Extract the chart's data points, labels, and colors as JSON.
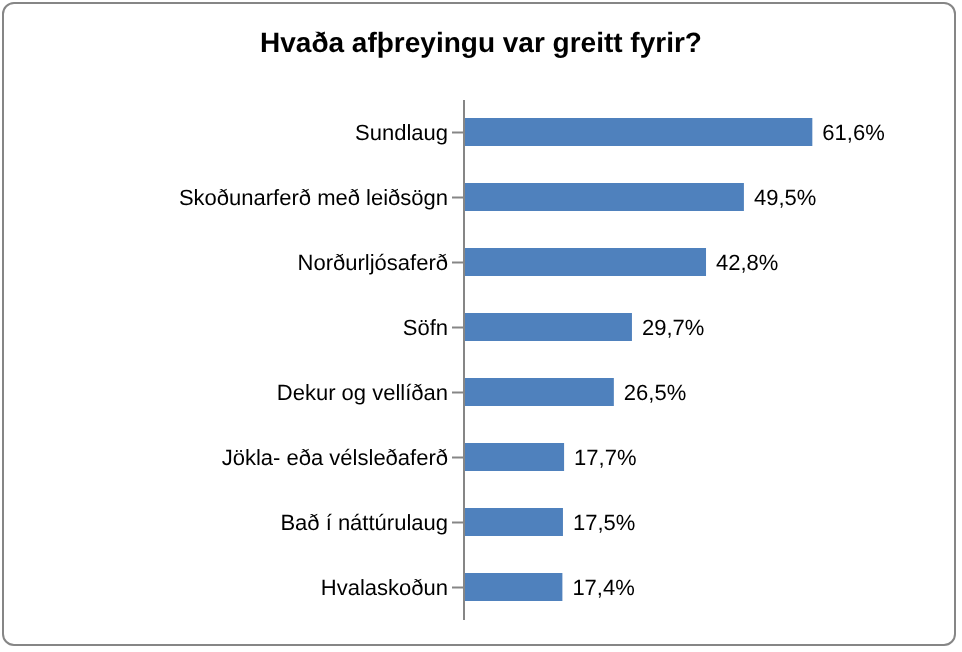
{
  "chart_data": {
    "type": "bar",
    "orientation": "horizontal",
    "title": "Hvaða afþreyingu var greitt fyrir?",
    "categories": [
      "Sundlaug",
      "Skoðunarferð með leiðsögn",
      "Norðurljósaferð",
      "Söfn",
      "Dekur og vellíðan",
      "Jökla- eða vélsleðaferð",
      "Bað í náttúrulaug",
      "Hvalaskoðun"
    ],
    "values": [
      61.6,
      49.5,
      42.8,
      29.7,
      26.5,
      17.7,
      17.5,
      17.4
    ],
    "value_labels": [
      "61,6%",
      "49,5%",
      "42,8%",
      "29,7%",
      "26,5%",
      "17,7%",
      "17,5%",
      "17,4%"
    ],
    "color": "#4f81bd"
  }
}
